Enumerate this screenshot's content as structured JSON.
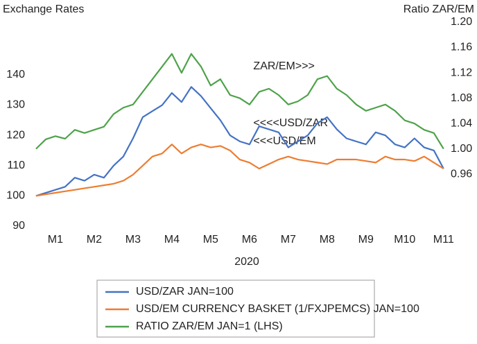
{
  "chart_data": {
    "type": "line",
    "y_label": "Exchange Rates",
    "y2_label": "Ratio ZAR/EM",
    "x_label": "2020",
    "annotations": [
      {
        "text": "ZAR/EM>>>",
        "x": 6.1,
        "y": 1.13,
        "axis": "y2"
      },
      {
        "text": "<<<<USD/ZAR",
        "x": 6.1,
        "y": 124
      },
      {
        "text": "<<<USD/EM",
        "x": 6.1,
        "y": 118
      }
    ],
    "x": [
      0.5,
      0.75,
      1,
      1.25,
      1.5,
      1.75,
      2,
      2.25,
      2.5,
      2.75,
      3,
      3.25,
      3.5,
      3.75,
      4,
      4.25,
      4.5,
      4.75,
      5,
      5.25,
      5.5,
      5.75,
      6,
      6.25,
      6.5,
      6.75,
      7,
      7.25,
      7.5,
      7.75,
      8,
      8.25,
      8.5,
      8.75,
      9,
      9.25,
      9.5,
      9.75,
      10,
      10.25,
      10.5,
      10.75,
      11
    ],
    "xlim": [
      0.43,
      11.04
    ],
    "xticks": [
      {
        "value": 1,
        "label": "M1"
      },
      {
        "value": 2,
        "label": "M2"
      },
      {
        "value": 3,
        "label": "M3"
      },
      {
        "value": 4,
        "label": "M4"
      },
      {
        "value": 5,
        "label": "M5"
      },
      {
        "value": 6,
        "label": "M6"
      },
      {
        "value": 7,
        "label": "M7"
      },
      {
        "value": 8,
        "label": "M8"
      },
      {
        "value": 9,
        "label": "M9"
      },
      {
        "value": 10,
        "label": "M10"
      },
      {
        "value": 11,
        "label": "M11"
      }
    ],
    "ylim": [
      90,
      157.4
    ],
    "yticks": [
      90,
      100,
      110,
      120,
      130,
      140
    ],
    "y2lim": [
      0.878,
      1.2
    ],
    "y2ticks": [
      {
        "value": 0.96,
        "label": "0.96"
      },
      {
        "value": 1.0,
        "label": "1.00"
      },
      {
        "value": 1.04,
        "label": "1.04"
      },
      {
        "value": 1.08,
        "label": "1.08"
      },
      {
        "value": 1.12,
        "label": "1.12"
      },
      {
        "value": 1.16,
        "label": "1.16"
      },
      {
        "value": 1.2,
        "label": "1.20"
      }
    ],
    "series": [
      {
        "name": "USD/ZAR JAN=100",
        "color": "#4472c4",
        "values": [
          100,
          101,
          102,
          103,
          106,
          105,
          107,
          106,
          110,
          113,
          119,
          126,
          128,
          130,
          134,
          131,
          136,
          133,
          129,
          125,
          120,
          118,
          117,
          123,
          122,
          121,
          116,
          118,
          120,
          124,
          126,
          122,
          119,
          118,
          117,
          121,
          120,
          117,
          116,
          119,
          116,
          115,
          109
        ]
      },
      {
        "name": "USD/EM CURRENCY BASKET (1/FXJPEMCS) JAN=100",
        "color": "#ed7d31",
        "values": [
          100,
          100.5,
          101,
          101.5,
          102,
          102.5,
          103,
          103.5,
          104,
          105,
          107,
          110,
          113,
          114,
          117,
          114,
          116,
          117,
          116,
          116.5,
          115,
          112,
          111,
          109,
          110.5,
          112,
          113,
          112,
          111.5,
          111,
          110.5,
          112,
          112,
          112,
          111.5,
          111,
          113,
          112,
          112,
          111.5,
          113,
          111,
          109
        ]
      },
      {
        "name": "RATIO ZAR/EM JAN=1 (LHS)",
        "color": "#4ea24a",
        "axis": "y2",
        "values": [
          1.0,
          1.015,
          1.02,
          1.016,
          1.03,
          1.025,
          1.03,
          1.035,
          1.055,
          1.065,
          1.07,
          1.09,
          1.11,
          1.13,
          1.15,
          1.12,
          1.15,
          1.13,
          1.1,
          1.11,
          1.085,
          1.08,
          1.07,
          1.09,
          1.095,
          1.085,
          1.07,
          1.075,
          1.085,
          1.11,
          1.115,
          1.095,
          1.085,
          1.07,
          1.06,
          1.065,
          1.07,
          1.06,
          1.045,
          1.04,
          1.03,
          1.025,
          1.0
        ]
      }
    ]
  }
}
